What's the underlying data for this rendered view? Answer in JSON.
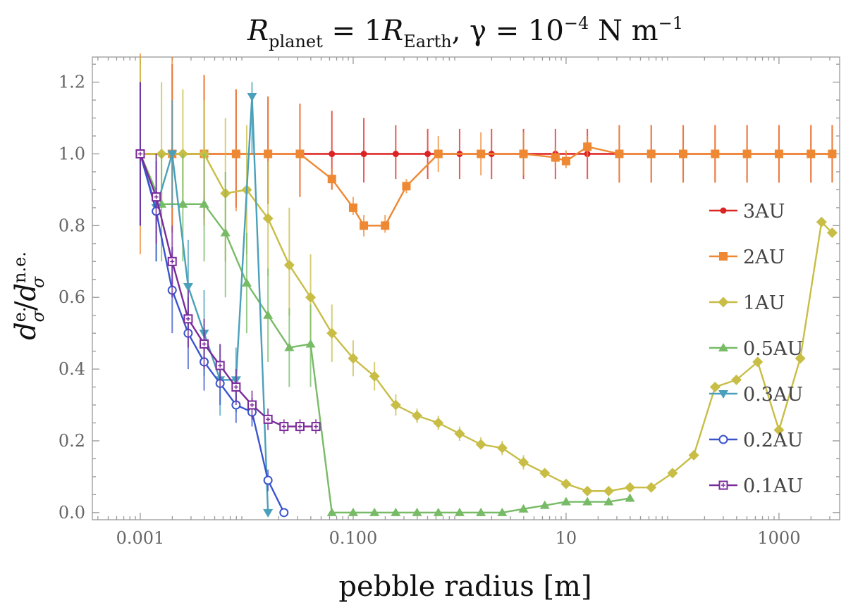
{
  "chart_data": {
    "type": "line",
    "title": {
      "lhs_symbol": "R",
      "lhs_sub": "planet",
      "eq1": " = 1",
      "rhs_symbol": "R",
      "rhs_sub": "Earth",
      "gamma_part": ", γ = 10",
      "exponent": "−4",
      "units": " N m",
      "units_exponent": "−1"
    },
    "xlabel": "pebble radius [m]",
    "ylabel": {
      "base": "d",
      "sub": "σ",
      "sup_num": "e.",
      "sup_den": "n.e."
    },
    "x_scale": "log10",
    "xlim_log10": [
      -3.45,
      3.57
    ],
    "ylim": [
      -0.02,
      1.27
    ],
    "x_ticks": [
      {
        "log10": -3,
        "label": "0.001"
      },
      {
        "log10": -1,
        "label": "0.100"
      },
      {
        "log10": 1,
        "label": "10"
      },
      {
        "log10": 3,
        "label": "1000"
      }
    ],
    "y_ticks": [
      {
        "value": 0.0,
        "label": "0.0"
      },
      {
        "value": 0.2,
        "label": "0.2"
      },
      {
        "value": 0.4,
        "label": "0.4"
      },
      {
        "value": 0.6,
        "label": "0.6"
      },
      {
        "value": 0.8,
        "label": "0.8"
      },
      {
        "value": 1.0,
        "label": "1.0"
      },
      {
        "value": 1.2,
        "label": "1.2"
      }
    ],
    "grid": false,
    "legend_position": "right",
    "series": [
      {
        "name": "3AU",
        "label": "3AU",
        "color": "#dd2222",
        "marker": "disk",
        "points": [
          [
            -3,
            1.0,
            1.0,
            1.0
          ],
          [
            -2.7,
            1.0,
            0.8,
            1.25
          ],
          [
            -2.4,
            1.0,
            0.82,
            1.22
          ],
          [
            -2.1,
            1.0,
            0.85,
            1.18
          ],
          [
            -1.8,
            1.0,
            0.86,
            1.16
          ],
          [
            -1.5,
            1.0,
            0.88,
            1.14
          ],
          [
            -1.2,
            1.0,
            0.9,
            1.12
          ],
          [
            -0.9,
            1.0,
            0.92,
            1.1
          ],
          [
            -0.6,
            1.0,
            0.93,
            1.08
          ],
          [
            -0.3,
            1.0,
            0.93,
            1.07
          ],
          [
            0,
            1.0,
            0.93,
            1.07
          ],
          [
            0.3,
            1.0,
            0.93,
            1.07
          ],
          [
            0.6,
            1.0,
            0.93,
            1.07
          ],
          [
            0.9,
            1.0,
            0.93,
            1.07
          ],
          [
            1.2,
            1.0,
            0.93,
            1.07
          ],
          [
            1.5,
            1.0,
            0.92,
            1.08
          ],
          [
            1.8,
            1.0,
            0.92,
            1.08
          ],
          [
            2.1,
            1.0,
            0.92,
            1.08
          ],
          [
            2.4,
            1.0,
            0.92,
            1.08
          ],
          [
            2.7,
            1.0,
            0.92,
            1.08
          ],
          [
            3.0,
            1.0,
            0.92,
            1.08
          ],
          [
            3.3,
            1.0,
            0.92,
            1.08
          ],
          [
            3.5,
            1.0,
            0.92,
            1.08
          ]
        ]
      },
      {
        "name": "2AU",
        "label": "2AU",
        "color": "#ee8833",
        "marker": "square",
        "points": [
          [
            -3,
            1.0,
            0.72,
            1.28
          ],
          [
            -2.7,
            1.0,
            0.78,
            1.27
          ],
          [
            -2.4,
            1.0,
            0.8,
            1.22
          ],
          [
            -2.1,
            1.0,
            0.84,
            1.18
          ],
          [
            -1.8,
            1.0,
            0.86,
            1.16
          ],
          [
            -1.5,
            1.0,
            0.88,
            1.14
          ],
          [
            -1.2,
            0.93,
            0.9,
            0.96
          ],
          [
            -1.0,
            0.85,
            0.83,
            0.88
          ],
          [
            -0.9,
            0.8,
            0.77,
            0.83
          ],
          [
            -0.7,
            0.8,
            0.78,
            0.83
          ],
          [
            -0.5,
            0.91,
            0.89,
            0.93
          ],
          [
            -0.2,
            1.0,
            0.95,
            1.05
          ],
          [
            0.2,
            1.0,
            0.94,
            1.06
          ],
          [
            0.6,
            1.0,
            0.94,
            1.06
          ],
          [
            0.9,
            0.99,
            0.96,
            1.02
          ],
          [
            1.0,
            0.98,
            0.96,
            1.01
          ],
          [
            1.2,
            1.02,
            0.99,
            1.05
          ],
          [
            1.5,
            1.0,
            0.92,
            1.08
          ],
          [
            1.8,
            1.0,
            0.92,
            1.08
          ],
          [
            2.1,
            1.0,
            0.92,
            1.08
          ],
          [
            2.4,
            1.0,
            0.92,
            1.08
          ],
          [
            2.7,
            1.0,
            0.92,
            1.08
          ],
          [
            3.0,
            1.0,
            0.92,
            1.08
          ],
          [
            3.3,
            1.0,
            0.92,
            1.08
          ],
          [
            3.5,
            1.0,
            0.92,
            1.08
          ]
        ]
      },
      {
        "name": "1AU",
        "label": "1AU",
        "color": "#c8bd45",
        "marker": "diamond",
        "points": [
          [
            -3,
            1.0,
            0.8,
            1.27
          ],
          [
            -2.8,
            1.0,
            0.85,
            1.2
          ],
          [
            -2.6,
            1.0,
            0.85,
            1.18
          ],
          [
            -2.4,
            1.0,
            0.88,
            1.15
          ],
          [
            -2.2,
            0.89,
            0.7,
            1.1
          ],
          [
            -2.0,
            0.9,
            0.72,
            1.08
          ],
          [
            -1.8,
            0.82,
            0.66,
            0.98
          ],
          [
            -1.6,
            0.69,
            0.55,
            0.85
          ],
          [
            -1.4,
            0.6,
            0.48,
            0.72
          ],
          [
            -1.2,
            0.5,
            0.42,
            0.58
          ],
          [
            -1.0,
            0.43,
            0.38,
            0.48
          ],
          [
            -0.8,
            0.38,
            0.34,
            0.42
          ],
          [
            -0.6,
            0.3,
            0.27,
            0.33
          ],
          [
            -0.4,
            0.27,
            0.25,
            0.29
          ],
          [
            -0.2,
            0.25,
            0.23,
            0.27
          ],
          [
            0.0,
            0.22,
            0.2,
            0.24
          ],
          [
            0.2,
            0.19,
            0.18,
            0.21
          ],
          [
            0.4,
            0.18,
            0.16,
            0.2
          ],
          [
            0.6,
            0.14,
            0.12,
            0.16
          ],
          [
            0.8,
            0.11,
            0.1,
            0.12
          ],
          [
            1.0,
            0.08,
            0.07,
            0.09
          ],
          [
            1.2,
            0.06,
            0.05,
            0.07
          ],
          [
            1.4,
            0.06,
            0.05,
            0.07
          ],
          [
            1.6,
            0.07,
            0.06,
            0.08
          ],
          [
            1.8,
            0.07,
            0.06,
            0.08
          ],
          [
            2.0,
            0.11,
            0.1,
            0.12
          ],
          [
            2.2,
            0.16,
            0.15,
            0.17
          ],
          [
            2.4,
            0.35,
            0.34,
            0.36
          ],
          [
            2.6,
            0.37,
            0.36,
            0.38
          ],
          [
            2.8,
            0.42,
            0.41,
            0.43
          ],
          [
            3.0,
            0.23,
            0.22,
            0.24
          ],
          [
            3.2,
            0.43,
            0.42,
            0.44
          ],
          [
            3.4,
            0.81,
            0.8,
            0.82
          ],
          [
            3.5,
            0.78,
            0.77,
            0.79
          ]
        ]
      },
      {
        "name": "0.5AU",
        "label": "0.5AU",
        "color": "#77bb66",
        "marker": "triangle-up",
        "points": [
          [
            -3,
            1.0,
            0.8,
            1.2
          ],
          [
            -2.8,
            0.86,
            0.7,
            1.0
          ],
          [
            -2.6,
            0.86,
            0.7,
            1.0
          ],
          [
            -2.4,
            0.86,
            0.7,
            1.0
          ],
          [
            -2.2,
            0.78,
            0.6,
            0.95
          ],
          [
            -2.0,
            0.64,
            0.5,
            0.78
          ],
          [
            -1.8,
            0.55,
            0.42,
            0.68
          ],
          [
            -1.6,
            0.46,
            0.35,
            0.57
          ],
          [
            -1.4,
            0.47,
            0.35,
            0.58
          ],
          [
            -1.2,
            0.0,
            0.0,
            0.0
          ],
          [
            -1.0,
            0.0,
            0.0,
            0.0
          ],
          [
            -0.8,
            0.0,
            0.0,
            0.0
          ],
          [
            -0.6,
            0.0,
            0.0,
            0.0
          ],
          [
            -0.4,
            0.0,
            0.0,
            0.0
          ],
          [
            -0.2,
            0.0,
            0.0,
            0.0
          ],
          [
            0.0,
            0.0,
            0.0,
            0.0
          ],
          [
            0.2,
            0.0,
            0.0,
            0.0
          ],
          [
            0.4,
            0.0,
            0.0,
            0.0
          ],
          [
            0.6,
            0.01,
            0.0,
            0.02
          ],
          [
            0.8,
            0.02,
            0.01,
            0.03
          ],
          [
            1.0,
            0.03,
            0.02,
            0.04
          ],
          [
            1.2,
            0.03,
            0.02,
            0.04
          ],
          [
            1.4,
            0.03,
            0.02,
            0.04
          ],
          [
            1.6,
            0.04,
            0.03,
            0.05
          ]
        ]
      },
      {
        "name": "0.3AU",
        "label": "0.3AU",
        "color": "#4aa0bb",
        "marker": "triangle-down",
        "points": [
          [
            -3,
            1.0,
            0.8,
            1.2
          ],
          [
            -2.85,
            0.85,
            0.7,
            1.0
          ],
          [
            -2.7,
            1.0,
            0.85,
            1.15
          ],
          [
            -2.55,
            0.63,
            0.5,
            0.76
          ],
          [
            -2.4,
            0.5,
            0.38,
            0.62
          ],
          [
            -2.25,
            0.37,
            0.27,
            0.47
          ],
          [
            -2.1,
            0.37,
            0.28,
            0.46
          ],
          [
            -1.95,
            1.16,
            1.0,
            1.2
          ],
          [
            -1.8,
            0.0,
            0.0,
            0.0
          ]
        ]
      },
      {
        "name": "0.2AU",
        "label": "0.2AU",
        "color": "#3a55cc",
        "marker": "circle-open",
        "points": [
          [
            -3,
            1.0,
            0.8,
            1.2
          ],
          [
            -2.85,
            0.84,
            0.7,
            0.98
          ],
          [
            -2.7,
            0.62,
            0.5,
            0.74
          ],
          [
            -2.55,
            0.5,
            0.4,
            0.6
          ],
          [
            -2.4,
            0.42,
            0.34,
            0.5
          ],
          [
            -2.25,
            0.36,
            0.3,
            0.42
          ],
          [
            -2.1,
            0.3,
            0.25,
            0.35
          ],
          [
            -1.95,
            0.28,
            0.24,
            0.32
          ],
          [
            -1.8,
            0.09,
            0.06,
            0.12
          ],
          [
            -1.65,
            0.0,
            0.0,
            0.0
          ]
        ]
      },
      {
        "name": "0.1AU",
        "label": "0.1AU",
        "color": "#7a2a9a",
        "marker": "square-open",
        "points": [
          [
            -3,
            1.0,
            0.8,
            1.2
          ],
          [
            -2.85,
            0.88,
            0.75,
            1.0
          ],
          [
            -2.7,
            0.7,
            0.6,
            0.8
          ],
          [
            -2.55,
            0.54,
            0.46,
            0.62
          ],
          [
            -2.4,
            0.47,
            0.4,
            0.54
          ],
          [
            -2.25,
            0.41,
            0.35,
            0.47
          ],
          [
            -2.1,
            0.35,
            0.3,
            0.4
          ],
          [
            -1.95,
            0.3,
            0.26,
            0.34
          ],
          [
            -1.8,
            0.26,
            0.23,
            0.29
          ],
          [
            -1.65,
            0.24,
            0.22,
            0.26
          ],
          [
            -1.5,
            0.24,
            0.22,
            0.26
          ],
          [
            -1.35,
            0.24,
            0.22,
            0.26
          ]
        ]
      }
    ]
  }
}
